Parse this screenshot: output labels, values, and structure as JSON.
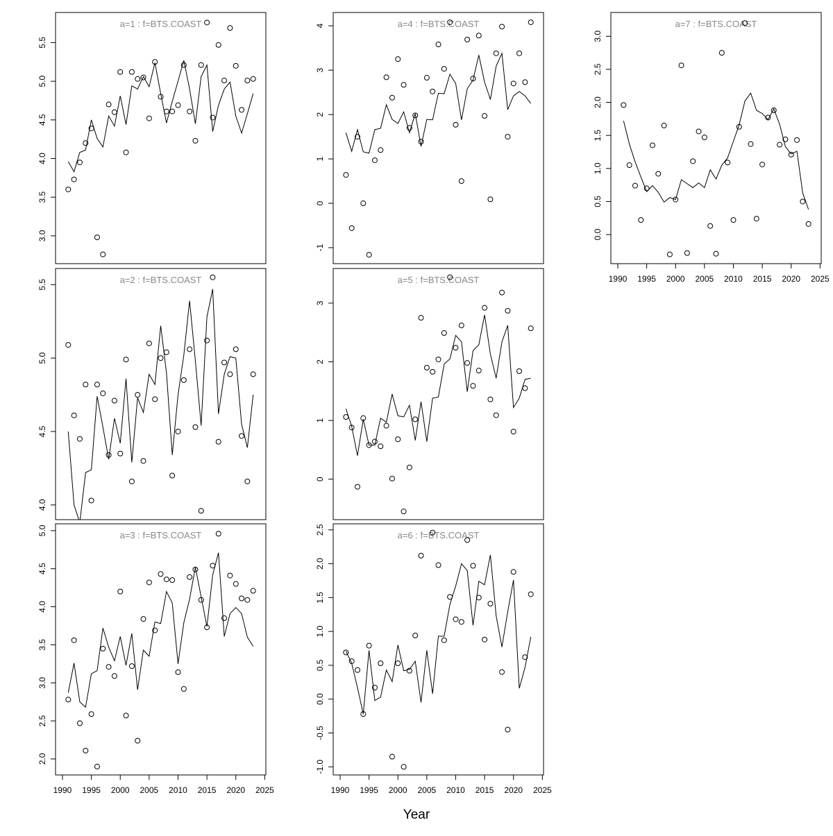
{
  "x_label": "Year",
  "chart_data": [
    {
      "type": "line",
      "title": "a=1 : f=BTS.COAST",
      "x": [
        1991,
        1992,
        1993,
        1994,
        1995,
        1996,
        1997,
        1998,
        1999,
        2000,
        2001,
        2002,
        2003,
        2004,
        2005,
        2006,
        2007,
        2008,
        2009,
        2010,
        2011,
        2012,
        2013,
        2014,
        2015,
        2016,
        2017,
        2018,
        2019,
        2020,
        2021,
        2022,
        2023
      ],
      "points": [
        3.6,
        3.73,
        3.95,
        4.2,
        4.39,
        2.98,
        2.76,
        4.7,
        4.6,
        5.12,
        4.08,
        5.12,
        5.03,
        5.05,
        4.52,
        5.25,
        4.8,
        4.61,
        4.61,
        4.69,
        5.21,
        4.61,
        4.23,
        5.21,
        5.76,
        4.53,
        5.47,
        5.01,
        5.69,
        5.2,
        4.63,
        5.01,
        5.03
      ],
      "values": [
        3.96,
        3.83,
        4.08,
        4.11,
        4.5,
        4.26,
        4.15,
        4.55,
        4.42,
        4.81,
        4.44,
        4.94,
        4.9,
        5.06,
        4.93,
        5.24,
        4.84,
        4.46,
        4.74,
        5.0,
        5.27,
        4.9,
        4.45,
        5.06,
        5.21,
        4.35,
        4.69,
        4.9,
        4.99,
        4.55,
        4.33,
        4.58,
        4.84
      ],
      "xlim": [
        1988.8,
        2025.2
      ],
      "ylim": [
        2.64,
        5.89
      ],
      "yticks": [
        {
          "value": 3,
          "label": "3.0"
        },
        3.5,
        {
          "value": 4,
          "label": "4.0"
        },
        4.5,
        {
          "value": 5,
          "label": "5.0"
        },
        5.5
      ]
    },
    {
      "type": "line",
      "title": "a=2 : f=BTS.COAST",
      "x": [
        1991,
        1992,
        1993,
        1994,
        1995,
        1996,
        1997,
        1998,
        1999,
        2000,
        2001,
        2002,
        2003,
        2004,
        2005,
        2006,
        2007,
        2008,
        2009,
        2010,
        2011,
        2012,
        2013,
        2014,
        2015,
        2016,
        2017,
        2018,
        2019,
        2020,
        2021,
        2022,
        2023
      ],
      "points": [
        5.09,
        4.61,
        4.45,
        4.82,
        4.03,
        4.82,
        4.76,
        4.34,
        4.71,
        4.35,
        4.99,
        4.16,
        4.75,
        4.3,
        5.1,
        4.72,
        5.0,
        5.04,
        4.2,
        4.5,
        4.85,
        5.06,
        4.53,
        3.96,
        5.12,
        5.55,
        4.43,
        4.97,
        4.89,
        5.06,
        4.47,
        4.16,
        4.89
      ],
      "values": [
        4.5,
        4.0,
        3.88,
        4.22,
        4.24,
        4.74,
        4.53,
        4.31,
        4.59,
        4.42,
        4.86,
        4.29,
        4.73,
        4.63,
        4.89,
        4.82,
        5.22,
        4.9,
        4.34,
        4.75,
        5.02,
        5.39,
        4.98,
        4.54,
        5.28,
        5.47,
        4.62,
        4.89,
        5.01,
        5.0,
        4.55,
        4.39,
        4.75
      ],
      "xlim": [
        1988.8,
        2025.2
      ],
      "ylim": [
        3.9,
        5.61
      ],
      "yticks": [
        {
          "value": 4,
          "label": "4.0"
        },
        4.5,
        {
          "value": 5,
          "label": "5.0"
        },
        5.5
      ]
    },
    {
      "type": "line",
      "title": "a=3 : f=BTS.COAST",
      "x": [
        1991,
        1992,
        1993,
        1994,
        1995,
        1996,
        1997,
        1998,
        1999,
        2000,
        2001,
        2002,
        2003,
        2004,
        2005,
        2006,
        2007,
        2008,
        2009,
        2010,
        2011,
        2012,
        2013,
        2014,
        2015,
        2016,
        2017,
        2018,
        2019,
        2020,
        2021,
        2022,
        2023
      ],
      "points": [
        2.78,
        3.56,
        2.47,
        2.11,
        2.59,
        1.9,
        3.45,
        3.21,
        3.09,
        4.2,
        2.57,
        3.22,
        2.24,
        3.84,
        4.32,
        3.69,
        4.43,
        4.36,
        4.35,
        3.14,
        2.92,
        4.39,
        4.49,
        4.09,
        3.73,
        4.54,
        4.96,
        3.85,
        4.41,
        4.3,
        4.11,
        4.09,
        4.21
      ],
      "values": [
        2.87,
        3.26,
        2.75,
        2.68,
        3.12,
        3.16,
        3.72,
        3.47,
        3.29,
        3.61,
        3.23,
        3.65,
        2.91,
        3.43,
        3.35,
        3.8,
        3.78,
        4.2,
        4.05,
        3.25,
        3.79,
        4.1,
        4.52,
        4.13,
        3.74,
        4.42,
        4.71,
        3.61,
        3.91,
        3.99,
        3.91,
        3.6,
        3.48
      ],
      "xlim": [
        1988.8,
        2025.2
      ],
      "ylim": [
        1.79,
        5.09
      ],
      "yticks": [
        {
          "value": 2,
          "label": "2.0"
        },
        2.5,
        {
          "value": 3,
          "label": "3.0"
        },
        3.5,
        {
          "value": 4,
          "label": "4.0"
        },
        4.5,
        {
          "value": 5,
          "label": "5.0"
        }
      ],
      "xticks": [
        1990,
        1995,
        2000,
        2005,
        2010,
        2015,
        2020,
        2025
      ]
    },
    {
      "type": "line",
      "title": "a=4 : f=BTS.COAST",
      "x": [
        1991,
        1992,
        1993,
        1994,
        1995,
        1996,
        1997,
        1998,
        1999,
        2000,
        2001,
        2002,
        2003,
        2004,
        2005,
        2006,
        2007,
        2008,
        2009,
        2010,
        2011,
        2012,
        2013,
        2014,
        2015,
        2016,
        2017,
        2018,
        2019,
        2020,
        2021,
        2022,
        2023
      ],
      "points": [
        0.64,
        -0.56,
        1.5,
        0.0,
        -1.16,
        0.97,
        1.2,
        2.84,
        2.38,
        3.25,
        2.67,
        1.7,
        1.98,
        1.39,
        2.83,
        2.52,
        3.58,
        3.03,
        4.08,
        1.77,
        0.5,
        3.69,
        2.81,
        3.78,
        1.97,
        0.09,
        3.38,
        3.98,
        1.5,
        2.7,
        3.38,
        2.73,
        4.08
      ],
      "values": [
        1.59,
        1.17,
        1.66,
        1.16,
        1.13,
        1.66,
        1.69,
        2.22,
        1.89,
        1.8,
        2.06,
        1.59,
        2.02,
        1.28,
        1.89,
        1.88,
        2.48,
        2.47,
        2.91,
        2.7,
        1.88,
        2.58,
        2.78,
        3.34,
        2.73,
        2.34,
        3.09,
        3.38,
        2.11,
        2.42,
        2.52,
        2.42,
        2.25
      ],
      "xlim": [
        1988.8,
        2025.2
      ],
      "ylim": [
        -1.36,
        4.3
      ],
      "yticks": [
        -1,
        0,
        1,
        2,
        3,
        4
      ]
    },
    {
      "type": "line",
      "title": "a=5 : f=BTS.COAST",
      "x": [
        1991,
        1992,
        1993,
        1994,
        1995,
        1996,
        1997,
        1998,
        1999,
        2000,
        2001,
        2002,
        2003,
        2004,
        2005,
        2006,
        2007,
        2008,
        2009,
        2010,
        2011,
        2012,
        2013,
        2014,
        2015,
        2016,
        2017,
        2018,
        2019,
        2020,
        2021,
        2022,
        2023
      ],
      "points": [
        1.06,
        0.88,
        -0.13,
        1.04,
        0.58,
        0.64,
        0.56,
        0.91,
        0.01,
        0.68,
        -0.55,
        0.2,
        1.02,
        2.75,
        1.9,
        1.83,
        2.04,
        2.49,
        3.44,
        2.24,
        2.62,
        1.98,
        1.59,
        1.85,
        2.92,
        1.36,
        1.09,
        3.18,
        2.87,
        0.81,
        1.84,
        1.55,
        2.57
      ],
      "values": [
        1.2,
        0.9,
        0.4,
        1.02,
        0.58,
        0.58,
        1.04,
        0.97,
        1.45,
        1.08,
        1.06,
        1.26,
        0.66,
        1.32,
        0.64,
        1.38,
        1.4,
        1.96,
        2.05,
        2.45,
        2.34,
        1.49,
        2.19,
        2.29,
        2.8,
        2.13,
        1.72,
        2.34,
        2.62,
        1.22,
        1.38,
        1.7,
        1.72
      ],
      "xlim": [
        1988.8,
        2025.2
      ],
      "ylim": [
        -0.69,
        3.59
      ],
      "yticks": [
        0,
        1,
        2,
        3
      ]
    },
    {
      "type": "line",
      "title": "a=6 : f=BTS.COAST",
      "x": [
        1991,
        1992,
        1993,
        1994,
        1995,
        1996,
        1997,
        1998,
        1999,
        2000,
        2001,
        2002,
        2003,
        2004,
        2005,
        2006,
        2007,
        2008,
        2009,
        2010,
        2011,
        2012,
        2013,
        2014,
        2015,
        2016,
        2017,
        2018,
        2019,
        2020,
        2021,
        2022,
        2023
      ],
      "points": [
        0.69,
        0.56,
        0.43,
        -0.22,
        0.79,
        0.17,
        0.53,
        null,
        -0.85,
        0.53,
        -1.0,
        0.42,
        0.94,
        2.12,
        null,
        2.46,
        1.98,
        0.87,
        1.51,
        1.18,
        1.14,
        2.35,
        1.97,
        1.5,
        0.88,
        1.41,
        null,
        0.4,
        -0.45,
        1.88,
        null,
        0.62,
        1.55
      ],
      "values": [
        0.71,
        0.53,
        0.17,
        -0.22,
        0.72,
        -0.02,
        0.03,
        0.43,
        0.26,
        0.8,
        0.42,
        0.44,
        0.56,
        -0.05,
        0.72,
        0.08,
        0.93,
        0.93,
        1.4,
        1.67,
        2.0,
        1.9,
        1.09,
        1.74,
        1.69,
        2.13,
        1.23,
        0.77,
        1.29,
        1.76,
        0.16,
        0.47,
        0.92
      ],
      "xlim": [
        1988.8,
        2025.2
      ],
      "ylim": [
        -1.12,
        2.59
      ],
      "yticks": [
        {
          "value": -1,
          "label": "-1.0"
        },
        -0.5,
        {
          "value": 0,
          "label": "0.0"
        },
        0.5,
        {
          "value": 1,
          "label": "1.0"
        },
        1.5,
        {
          "value": 2,
          "label": "2.0"
        },
        2.5
      ],
      "xticks": [
        1990,
        1995,
        2000,
        2005,
        2010,
        2015,
        2020,
        2025
      ]
    },
    {
      "type": "line",
      "title": "a=7 : f=BTS.COAST",
      "x": [
        1991,
        1992,
        1993,
        1994,
        1995,
        1996,
        1997,
        1998,
        1999,
        2000,
        2001,
        2002,
        2003,
        2004,
        2005,
        2006,
        2007,
        2008,
        2009,
        2010,
        2011,
        2012,
        2013,
        2014,
        2015,
        2016,
        2017,
        2018,
        2019,
        2020,
        2021,
        2022,
        2023
      ],
      "points": [
        1.96,
        1.05,
        0.74,
        0.22,
        0.7,
        1.35,
        0.92,
        1.65,
        -0.3,
        0.53,
        2.56,
        -0.28,
        1.11,
        1.56,
        1.47,
        0.13,
        -0.29,
        2.75,
        1.09,
        0.22,
        1.63,
        3.2,
        1.37,
        0.24,
        1.06,
        1.77,
        1.88,
        1.36,
        1.44,
        1.21,
        1.43,
        0.5,
        0.16
      ],
      "values": [
        1.72,
        1.37,
        1.1,
        0.87,
        0.65,
        0.74,
        0.64,
        0.49,
        0.56,
        0.53,
        0.83,
        0.77,
        0.71,
        0.78,
        0.71,
        0.98,
        0.84,
        1.05,
        1.16,
        1.41,
        1.66,
        2.02,
        2.14,
        1.88,
        1.83,
        1.74,
        1.9,
        1.67,
        1.33,
        1.22,
        1.26,
        0.63,
        0.38
      ],
      "xlim": [
        1988.8,
        2025.2
      ],
      "ylim": [
        -0.44,
        3.36
      ],
      "yticks": [
        {
          "value": 0,
          "label": "0.0"
        },
        0.5,
        {
          "value": 1,
          "label": "1.0"
        },
        1.5,
        {
          "value": 2,
          "label": "2.0"
        },
        2.5,
        {
          "value": 3,
          "label": "3.0"
        }
      ],
      "xticks": [
        1990,
        1995,
        2000,
        2005,
        2010,
        2015,
        2020,
        2025
      ]
    }
  ]
}
